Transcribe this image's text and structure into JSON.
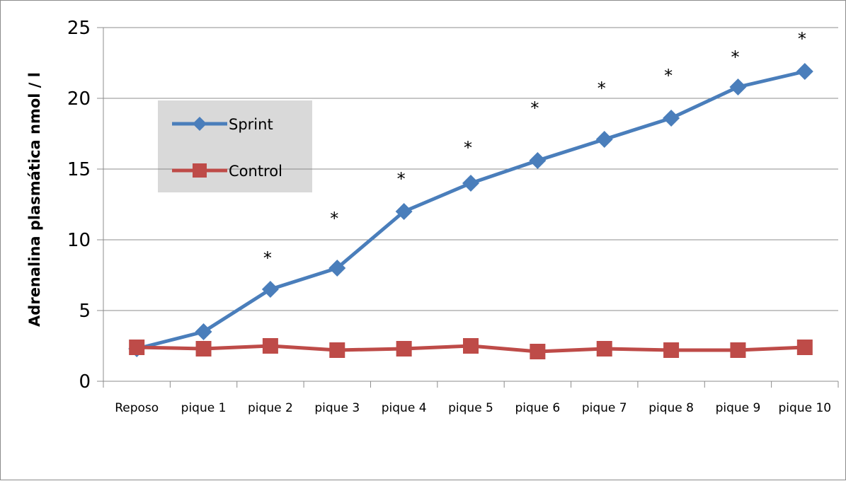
{
  "chart_data": {
    "type": "line",
    "title": "",
    "xlabel": "",
    "ylabel": "Adrenalina plasmática   nmol / l",
    "ylim": [
      0,
      25
    ],
    "yticks": [
      0,
      5,
      10,
      15,
      20,
      25
    ],
    "grid": "horizontal",
    "legend_position": "top-left",
    "categories": [
      "Reposo",
      "pique 1",
      "pique 2",
      "pique 3",
      "pique 4",
      "pique 5",
      "pique 6",
      "pique 7",
      "pique 8",
      "pique 9",
      "pique 10"
    ],
    "series": [
      {
        "name": "Sprint",
        "color": "#4a7ebb",
        "marker": "diamond",
        "values": [
          2.3,
          3.5,
          6.5,
          8.0,
          12.0,
          14.0,
          15.6,
          17.1,
          18.6,
          20.8,
          21.9
        ]
      },
      {
        "name": "Control",
        "color": "#be4b48",
        "marker": "square",
        "values": [
          2.4,
          2.3,
          2.5,
          2.2,
          2.3,
          2.5,
          2.1,
          2.3,
          2.2,
          2.2,
          2.4
        ]
      }
    ],
    "significance_marker": "*",
    "significance_flags": [
      false,
      false,
      true,
      true,
      true,
      true,
      true,
      true,
      true,
      true,
      true
    ],
    "significance_y": [
      null,
      null,
      8.9,
      11.7,
      14.5,
      16.7,
      19.5,
      20.9,
      21.8,
      23.1,
      24.4
    ]
  }
}
